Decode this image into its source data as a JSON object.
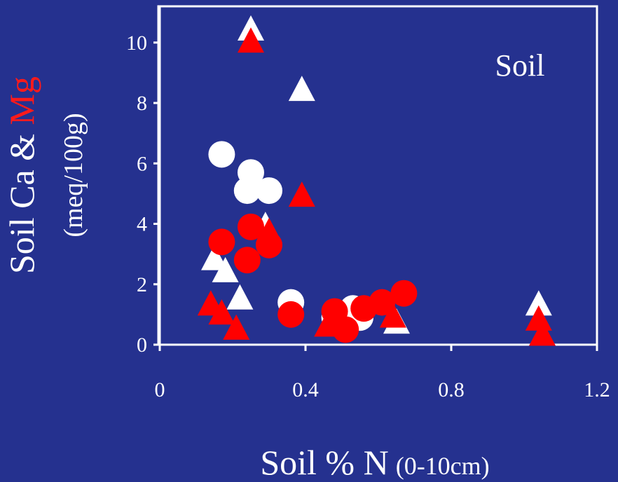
{
  "chart_data": {
    "type": "scatter",
    "title": "",
    "annotation": "Soil",
    "xlabel_main": "Soil % N",
    "xlabel_unit": "(0-10cm)",
    "ylabel_part1": "Soil Ca & ",
    "ylabel_part2": "Mg",
    "ylabel_unit": "(meq/100g)",
    "xlim": [
      0,
      1.2
    ],
    "ylim": [
      0,
      11.2
    ],
    "x_ticks": [
      "0",
      "0.4",
      "0.8",
      "1.2"
    ],
    "y_ticks": [
      "0",
      "2",
      "4",
      "6",
      "8",
      "10"
    ],
    "grid": false,
    "colors": {
      "background": "#25318f",
      "plot_bg": "#25318f",
      "ca": "#ffffff",
      "mg": "#ff0000",
      "mg_label": "#ff1a1a"
    },
    "series": [
      {
        "marker": "triangle",
        "color": "ca",
        "points": [
          [
            0.25,
            10.4
          ],
          [
            0.39,
            8.4
          ],
          [
            0.29,
            3.9
          ],
          [
            0.15,
            2.8
          ],
          [
            0.18,
            2.4
          ],
          [
            0.22,
            1.5
          ],
          [
            0.49,
            0.8
          ],
          [
            0.52,
            1.1
          ],
          [
            0.65,
            0.7
          ],
          [
            1.04,
            1.3
          ]
        ]
      },
      {
        "marker": "circle",
        "color": "ca",
        "points": [
          [
            0.17,
            6.3
          ],
          [
            0.25,
            5.7
          ],
          [
            0.24,
            5.1
          ],
          [
            0.3,
            5.1
          ],
          [
            0.36,
            1.4
          ],
          [
            0.48,
            0.9
          ],
          [
            0.55,
            0.9
          ],
          [
            0.53,
            1.2
          ]
        ]
      },
      {
        "marker": "triangle",
        "color": "mg",
        "points": [
          [
            0.25,
            10.0
          ],
          [
            0.39,
            4.9
          ],
          [
            0.3,
            3.7
          ],
          [
            0.14,
            1.3
          ],
          [
            0.17,
            1.0
          ],
          [
            0.21,
            0.5
          ],
          [
            0.46,
            0.6
          ],
          [
            0.64,
            0.9
          ],
          [
            1.04,
            0.8
          ],
          [
            1.05,
            0.3
          ]
        ]
      },
      {
        "marker": "circle",
        "color": "mg",
        "points": [
          [
            0.17,
            3.4
          ],
          [
            0.25,
            3.9
          ],
          [
            0.24,
            2.8
          ],
          [
            0.3,
            3.3
          ],
          [
            0.36,
            1.0
          ],
          [
            0.48,
            1.1
          ],
          [
            0.51,
            0.5
          ],
          [
            0.56,
            1.2
          ],
          [
            0.61,
            1.4
          ],
          [
            0.67,
            1.7
          ]
        ]
      }
    ]
  }
}
